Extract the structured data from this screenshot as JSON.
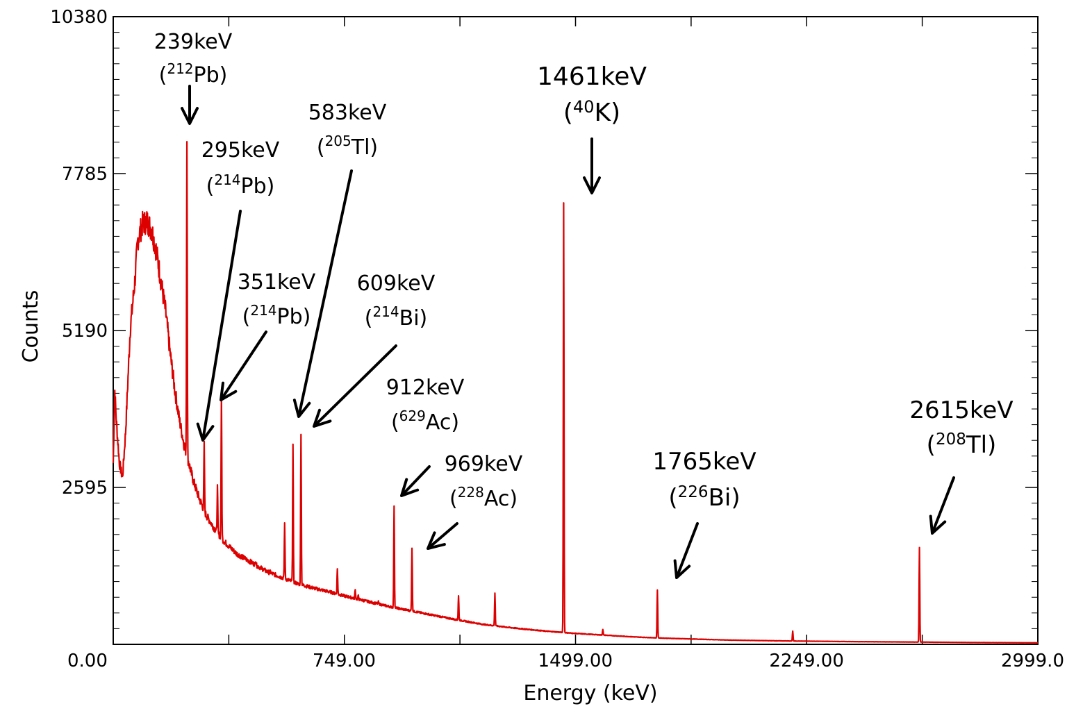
{
  "chart_data": {
    "type": "line",
    "title": "",
    "xlabel": "Energy (keV)",
    "ylabel": "Counts",
    "xlim": [
      0,
      2999
    ],
    "ylim": [
      0,
      10380
    ],
    "x_ticks": [
      0,
      749,
      1499,
      2249,
      2999
    ],
    "x_tick_labels": [
      "0.00",
      "749.00",
      "1499.00",
      "2249.00",
      "2999.0"
    ],
    "y_ticks": [
      2595,
      5190,
      7785,
      10380
    ],
    "y_tick_labels": [
      "2595",
      "5190",
      "7785",
      "10380"
    ],
    "series_color": "#dd0000",
    "continuum": [
      [
        0,
        3000
      ],
      [
        5,
        4200
      ],
      [
        10,
        3700
      ],
      [
        20,
        3000
      ],
      [
        30,
        2750
      ],
      [
        40,
        3500
      ],
      [
        55,
        5200
      ],
      [
        70,
        6000
      ],
      [
        80,
        6700
      ],
      [
        95,
        6950
      ],
      [
        110,
        7000
      ],
      [
        125,
        6850
      ],
      [
        140,
        6500
      ],
      [
        155,
        6000
      ],
      [
        170,
        5500
      ],
      [
        185,
        4800
      ],
      [
        200,
        4200
      ],
      [
        215,
        3700
      ],
      [
        230,
        3300
      ],
      [
        245,
        3000
      ],
      [
        260,
        2700
      ],
      [
        280,
        2400
      ],
      [
        300,
        2150
      ],
      [
        330,
        1900
      ],
      [
        360,
        1700
      ],
      [
        400,
        1500
      ],
      [
        450,
        1350
      ],
      [
        500,
        1200
      ],
      [
        550,
        1100
      ],
      [
        600,
        1000
      ],
      [
        650,
        930
      ],
      [
        700,
        870
      ],
      [
        750,
        800
      ],
      [
        800,
        740
      ],
      [
        850,
        680
      ],
      [
        900,
        620
      ],
      [
        1000,
        520
      ],
      [
        1100,
        420
      ],
      [
        1200,
        330
      ],
      [
        1300,
        270
      ],
      [
        1400,
        220
      ],
      [
        1500,
        180
      ],
      [
        1600,
        150
      ],
      [
        1700,
        120
      ],
      [
        1800,
        100
      ],
      [
        1900,
        85
      ],
      [
        2000,
        70
      ],
      [
        2200,
        55
      ],
      [
        2400,
        45
      ],
      [
        2600,
        38
      ],
      [
        2800,
        30
      ],
      [
        2999,
        25
      ]
    ],
    "peaks": [
      {
        "energy": 239,
        "counts": 8400
      },
      {
        "energy": 295,
        "counts": 3300
      },
      {
        "energy": 338,
        "counts": 2600
      },
      {
        "energy": 351,
        "counts": 4100
      },
      {
        "energy": 462,
        "counts": 1400
      },
      {
        "energy": 510,
        "counts": 1200
      },
      {
        "energy": 556,
        "counts": 2000
      },
      {
        "energy": 583,
        "counts": 3300
      },
      {
        "energy": 609,
        "counts": 3500
      },
      {
        "energy": 727,
        "counts": 1250
      },
      {
        "energy": 785,
        "counts": 900
      },
      {
        "energy": 795,
        "counts": 800
      },
      {
        "energy": 860,
        "counts": 700
      },
      {
        "energy": 911,
        "counts": 2300
      },
      {
        "energy": 969,
        "counts": 1600
      },
      {
        "energy": 1120,
        "counts": 800
      },
      {
        "energy": 1238,
        "counts": 850
      },
      {
        "energy": 1461,
        "counts": 7300
      },
      {
        "energy": 1588,
        "counts": 250
      },
      {
        "energy": 1765,
        "counts": 900
      },
      {
        "energy": 2204,
        "counts": 220
      },
      {
        "energy": 2615,
        "counts": 1600
      }
    ],
    "annotations": [
      {
        "energy": "239keV",
        "iso_pre": "(",
        "iso_mass": "212",
        "iso_el": "Pb)",
        "peak_keV": 239
      },
      {
        "energy": "295keV",
        "iso_pre": "(",
        "iso_mass": "214",
        "iso_el": "Pb)",
        "peak_keV": 295
      },
      {
        "energy": "583keV",
        "iso_pre": "(",
        "iso_mass": "205",
        "iso_el": "Tl)",
        "peak_keV": 583
      },
      {
        "energy": "1461keV",
        "iso_pre": "(",
        "iso_mass": "40",
        "iso_el": "K)",
        "peak_keV": 1461
      },
      {
        "energy": "351keV",
        "iso_pre": "(",
        "iso_mass": "214",
        "iso_el": "Pb)",
        "peak_keV": 351
      },
      {
        "energy": "609keV",
        "iso_pre": "(",
        "iso_mass": "214",
        "iso_el": "Bi)",
        "peak_keV": 609
      },
      {
        "energy": "912keV",
        "iso_pre": "(",
        "iso_mass": "629",
        "iso_el": "Ac)",
        "peak_keV": 912
      },
      {
        "energy": "969keV",
        "iso_pre": "(",
        "iso_mass": "228",
        "iso_el": "Ac)",
        "peak_keV": 969
      },
      {
        "energy": "1765keV",
        "iso_pre": "(",
        "iso_mass": "226",
        "iso_el": "Bi)",
        "peak_keV": 1765
      },
      {
        "energy": "2615keV",
        "iso_pre": "(",
        "iso_mass": "208",
        "iso_el": "Tl)",
        "peak_keV": 2615
      }
    ]
  }
}
